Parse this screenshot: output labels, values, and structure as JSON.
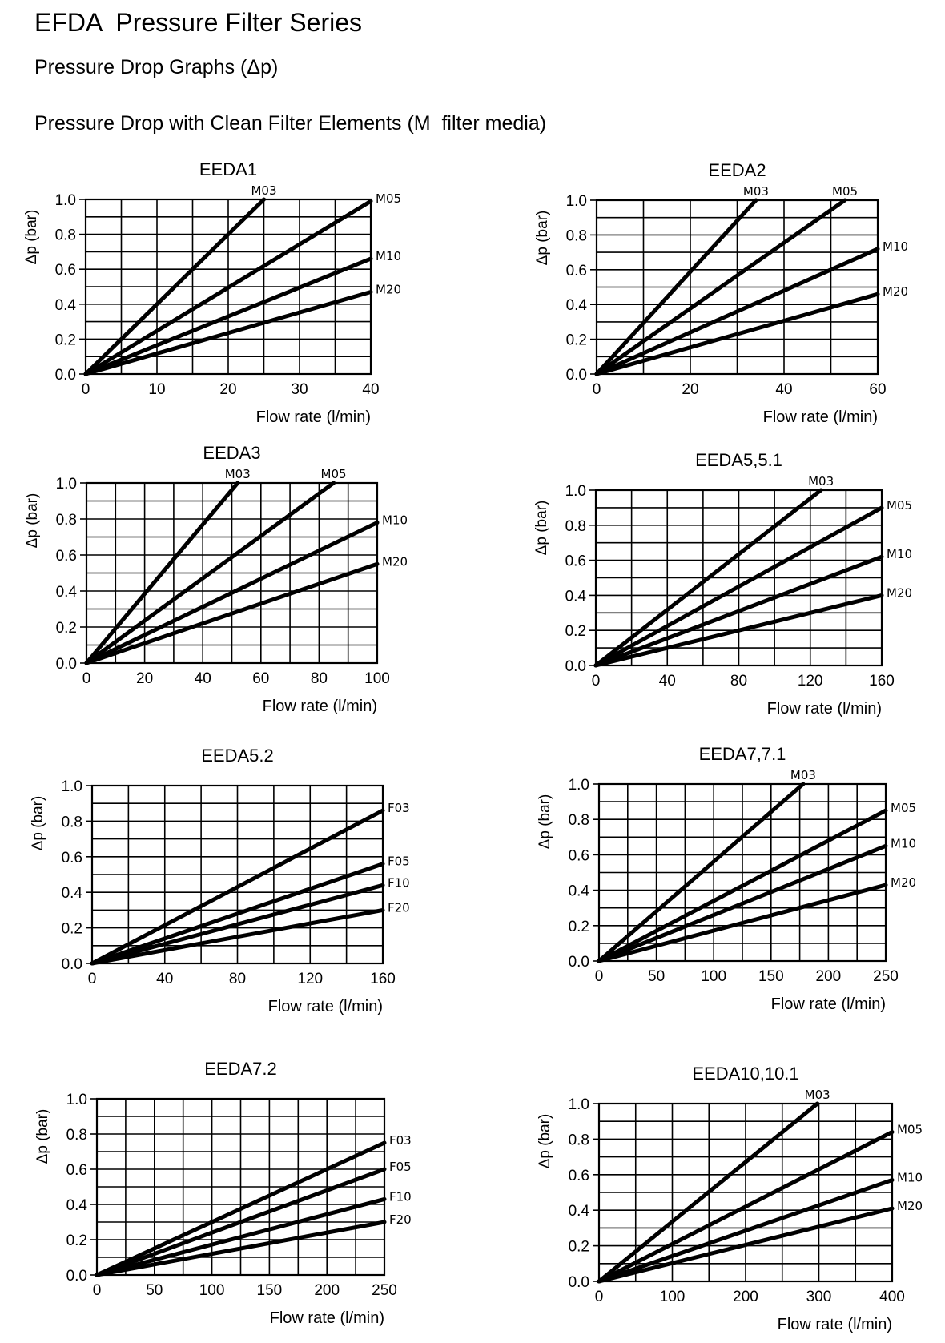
{
  "page": {
    "title": "EFDA  Pressure Filter Series",
    "subtitle": "Pressure Drop Graphs (Δp)",
    "section": "Pressure Drop with Clean Filter Elements (M  filter media)"
  },
  "chart_data": [
    {
      "type": "line",
      "title": "EEDA1",
      "xlabel": "Flow rate (l/min)",
      "ylabel": "Δp (bar)",
      "xlim": [
        0,
        40
      ],
      "ylim": [
        0,
        1
      ],
      "xticks": [
        "0",
        "10",
        "20",
        "30",
        "40"
      ],
      "yticks": [
        "0.0",
        "0.2",
        "0.4",
        "0.6",
        "0.8",
        "1.0"
      ],
      "grid_x": 8,
      "grid_y": 10,
      "series": [
        {
          "name": "M03",
          "x": [
            0,
            25
          ],
          "y": [
            0,
            1.0
          ]
        },
        {
          "name": "M05",
          "x": [
            0,
            40
          ],
          "y": [
            0,
            0.99
          ]
        },
        {
          "name": "M10",
          "x": [
            0,
            40
          ],
          "y": [
            0,
            0.66
          ]
        },
        {
          "name": "M20",
          "x": [
            0,
            40
          ],
          "y": [
            0,
            0.47
          ]
        }
      ]
    },
    {
      "type": "line",
      "title": "EEDA2",
      "xlabel": "Flow rate (l/min)",
      "ylabel": "Δp (bar)",
      "xlim": [
        0,
        60
      ],
      "ylim": [
        0,
        1
      ],
      "xticks": [
        "0",
        "20",
        "40",
        "60"
      ],
      "yticks": [
        "0.0",
        "0.2",
        "0.4",
        "0.6",
        "0.8",
        "1.0"
      ],
      "grid_x": 6,
      "grid_y": 10,
      "series": [
        {
          "name": "M03",
          "x": [
            0,
            34
          ],
          "y": [
            0,
            1.0
          ]
        },
        {
          "name": "M05",
          "x": [
            0,
            53
          ],
          "y": [
            0,
            1.0
          ]
        },
        {
          "name": "M10",
          "x": [
            0,
            60
          ],
          "y": [
            0,
            0.72
          ]
        },
        {
          "name": "M20",
          "x": [
            0,
            60
          ],
          "y": [
            0,
            0.46
          ]
        }
      ]
    },
    {
      "type": "line",
      "title": "EEDA3",
      "xlabel": "Flow rate (l/min)",
      "ylabel": "Δp (bar)",
      "xlim": [
        0,
        100
      ],
      "ylim": [
        0,
        1
      ],
      "xticks": [
        "0",
        "20",
        "40",
        "60",
        "80",
        "100"
      ],
      "yticks": [
        "0.0",
        "0.2",
        "0.4",
        "0.6",
        "0.8",
        "1.0"
      ],
      "grid_x": 10,
      "grid_y": 10,
      "series": [
        {
          "name": "M03",
          "x": [
            0,
            52
          ],
          "y": [
            0,
            1.0
          ]
        },
        {
          "name": "M05",
          "x": [
            0,
            85
          ],
          "y": [
            0,
            1.0
          ]
        },
        {
          "name": "M10",
          "x": [
            0,
            100
          ],
          "y": [
            0,
            0.78
          ]
        },
        {
          "name": "M20",
          "x": [
            0,
            100
          ],
          "y": [
            0,
            0.55
          ]
        }
      ]
    },
    {
      "type": "line",
      "title": "EEDA5,5.1",
      "xlabel": "Flow rate (l/min)",
      "ylabel": "Δp (bar)",
      "xlim": [
        0,
        160
      ],
      "ylim": [
        0,
        1
      ],
      "xticks": [
        "0",
        "40",
        "80",
        "120",
        "160"
      ],
      "yticks": [
        "0.0",
        "0.2",
        "0.4",
        "0.6",
        "0.8",
        "1.0"
      ],
      "grid_x": 8,
      "grid_y": 10,
      "series": [
        {
          "name": "M03",
          "x": [
            0,
            126
          ],
          "y": [
            0,
            1.0
          ]
        },
        {
          "name": "M05",
          "x": [
            0,
            160
          ],
          "y": [
            0,
            0.9
          ]
        },
        {
          "name": "M10",
          "x": [
            0,
            160
          ],
          "y": [
            0,
            0.62
          ]
        },
        {
          "name": "M20",
          "x": [
            0,
            160
          ],
          "y": [
            0,
            0.4
          ]
        }
      ]
    },
    {
      "type": "line",
      "title": "EEDA5.2",
      "xlabel": "Flow rate (l/min)",
      "ylabel": "Δp (bar)",
      "xlim": [
        0,
        160
      ],
      "ylim": [
        0,
        1
      ],
      "xticks": [
        "0",
        "40",
        "80",
        "120",
        "160"
      ],
      "yticks": [
        "0.0",
        "0.2",
        "0.4",
        "0.6",
        "0.8",
        "1.0"
      ],
      "grid_x": 8,
      "grid_y": 10,
      "series": [
        {
          "name": "F03",
          "x": [
            0,
            160
          ],
          "y": [
            0,
            0.86
          ]
        },
        {
          "name": "F05",
          "x": [
            0,
            160
          ],
          "y": [
            0,
            0.56
          ]
        },
        {
          "name": "F10",
          "x": [
            0,
            160
          ],
          "y": [
            0,
            0.44
          ]
        },
        {
          "name": "F20",
          "x": [
            0,
            160
          ],
          "y": [
            0,
            0.3
          ]
        }
      ]
    },
    {
      "type": "line",
      "title": "EEDA7,7.1",
      "xlabel": "Flow rate (l/min)",
      "ylabel": "Δp (bar)",
      "xlim": [
        0,
        250
      ],
      "ylim": [
        0,
        1
      ],
      "xticks": [
        "0",
        "50",
        "100",
        "150",
        "200",
        "250"
      ],
      "yticks": [
        "0.0",
        "0.2",
        "0.4",
        "0.6",
        "0.8",
        "1.0"
      ],
      "grid_x": 10,
      "grid_y": 10,
      "series": [
        {
          "name": "M03",
          "x": [
            0,
            178
          ],
          "y": [
            0,
            1.0
          ]
        },
        {
          "name": "M05",
          "x": [
            0,
            250
          ],
          "y": [
            0,
            0.85
          ]
        },
        {
          "name": "M10",
          "x": [
            0,
            250
          ],
          "y": [
            0,
            0.65
          ]
        },
        {
          "name": "M20",
          "x": [
            0,
            250
          ],
          "y": [
            0,
            0.43
          ]
        }
      ]
    },
    {
      "type": "line",
      "title": "EEDA7.2",
      "xlabel": "Flow rate (l/min)",
      "ylabel": "Δp (bar)",
      "xlim": [
        0,
        250
      ],
      "ylim": [
        0,
        1
      ],
      "xticks": [
        "0",
        "50",
        "100",
        "150",
        "200",
        "250"
      ],
      "yticks": [
        "0.0",
        "0.2",
        "0.4",
        "0.6",
        "0.8",
        "1.0"
      ],
      "grid_x": 10,
      "grid_y": 10,
      "series": [
        {
          "name": "F03",
          "x": [
            0,
            250
          ],
          "y": [
            0,
            0.75
          ]
        },
        {
          "name": "F05",
          "x": [
            0,
            250
          ],
          "y": [
            0,
            0.6
          ]
        },
        {
          "name": "F10",
          "x": [
            0,
            250
          ],
          "y": [
            0,
            0.43
          ]
        },
        {
          "name": "F20",
          "x": [
            0,
            250
          ],
          "y": [
            0,
            0.3
          ]
        }
      ]
    },
    {
      "type": "line",
      "title": "EEDA10,10.1",
      "xlabel": "Flow rate (l/min)",
      "ylabel": "Δp (bar)",
      "xlim": [
        0,
        400
      ],
      "ylim": [
        0,
        1
      ],
      "xticks": [
        "0",
        "100",
        "200",
        "300",
        "400"
      ],
      "yticks": [
        "0.0",
        "0.2",
        "0.4",
        "0.6",
        "0.8",
        "1.0"
      ],
      "grid_x": 8,
      "grid_y": 10,
      "series": [
        {
          "name": "M03",
          "x": [
            0,
            298
          ],
          "y": [
            0,
            1.0
          ]
        },
        {
          "name": "M05",
          "x": [
            0,
            400
          ],
          "y": [
            0,
            0.84
          ]
        },
        {
          "name": "M10",
          "x": [
            0,
            400
          ],
          "y": [
            0,
            0.57
          ]
        },
        {
          "name": "M20",
          "x": [
            0,
            400
          ],
          "y": [
            0,
            0.41
          ]
        }
      ]
    }
  ]
}
